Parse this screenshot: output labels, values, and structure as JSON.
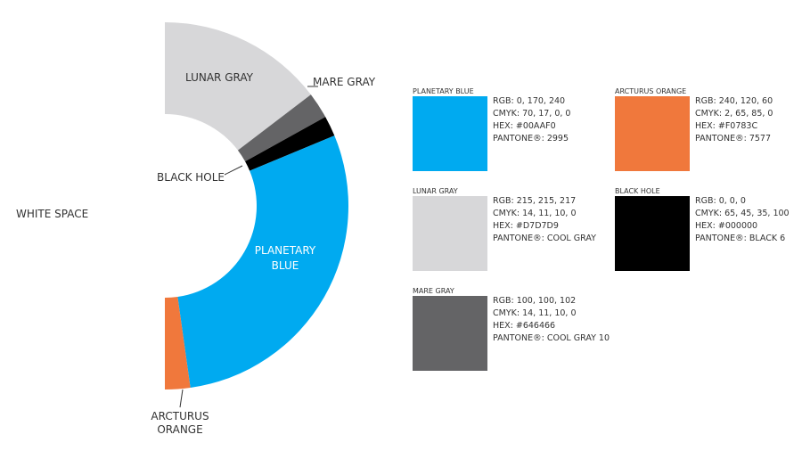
{
  "wheel_labels": {
    "white_space": "WHITE SPACE",
    "lunar_gray": "LUNAR GRAY",
    "mare_gray": "MARE GRAY",
    "black_hole": "BLACK HOLE",
    "planetary_blue": [
      "PLANETARY",
      "BLUE"
    ],
    "arcturus_orange": [
      "ARCTURUS",
      "ORANGE"
    ]
  },
  "swatches": [
    {
      "name": "PLANETARY BLUE",
      "color": "#00AAF0",
      "specs": [
        "RGB: 0, 170, 240",
        "CMYK: 70, 17, 0, 0",
        "HEX: #00AAF0",
        "PANTONE®: 2995"
      ]
    },
    {
      "name": "ARCTURUS ORANGE",
      "color": "#F0783C",
      "specs": [
        "RGB: 240, 120, 60",
        "CMYK: 2, 65, 85, 0",
        "HEX: #F0783C",
        "PANTONE®: 7577"
      ]
    },
    {
      "name": "LUNAR GRAY",
      "color": "#D7D7D9",
      "specs": [
        "RGB: 215, 215, 217",
        "CMYK: 14, 11, 10, 0",
        "HEX: #D7D7D9",
        "PANTONE®: COOL GRAY"
      ]
    },
    {
      "name": "BLACK HOLE",
      "color": "#000000",
      "specs": [
        "RGB: 0, 0, 0",
        "CMYK: 65, 45, 35, 100",
        "HEX: #000000",
        "PANTONE®: BLACK 6"
      ]
    },
    {
      "name": "MARE GRAY",
      "color": "#646466",
      "specs": [
        "RGB: 100, 100, 102",
        "CMYK: 14, 11, 10, 0",
        "HEX: #646466",
        "PANTONE®: COOL GRAY 10"
      ]
    }
  ]
}
